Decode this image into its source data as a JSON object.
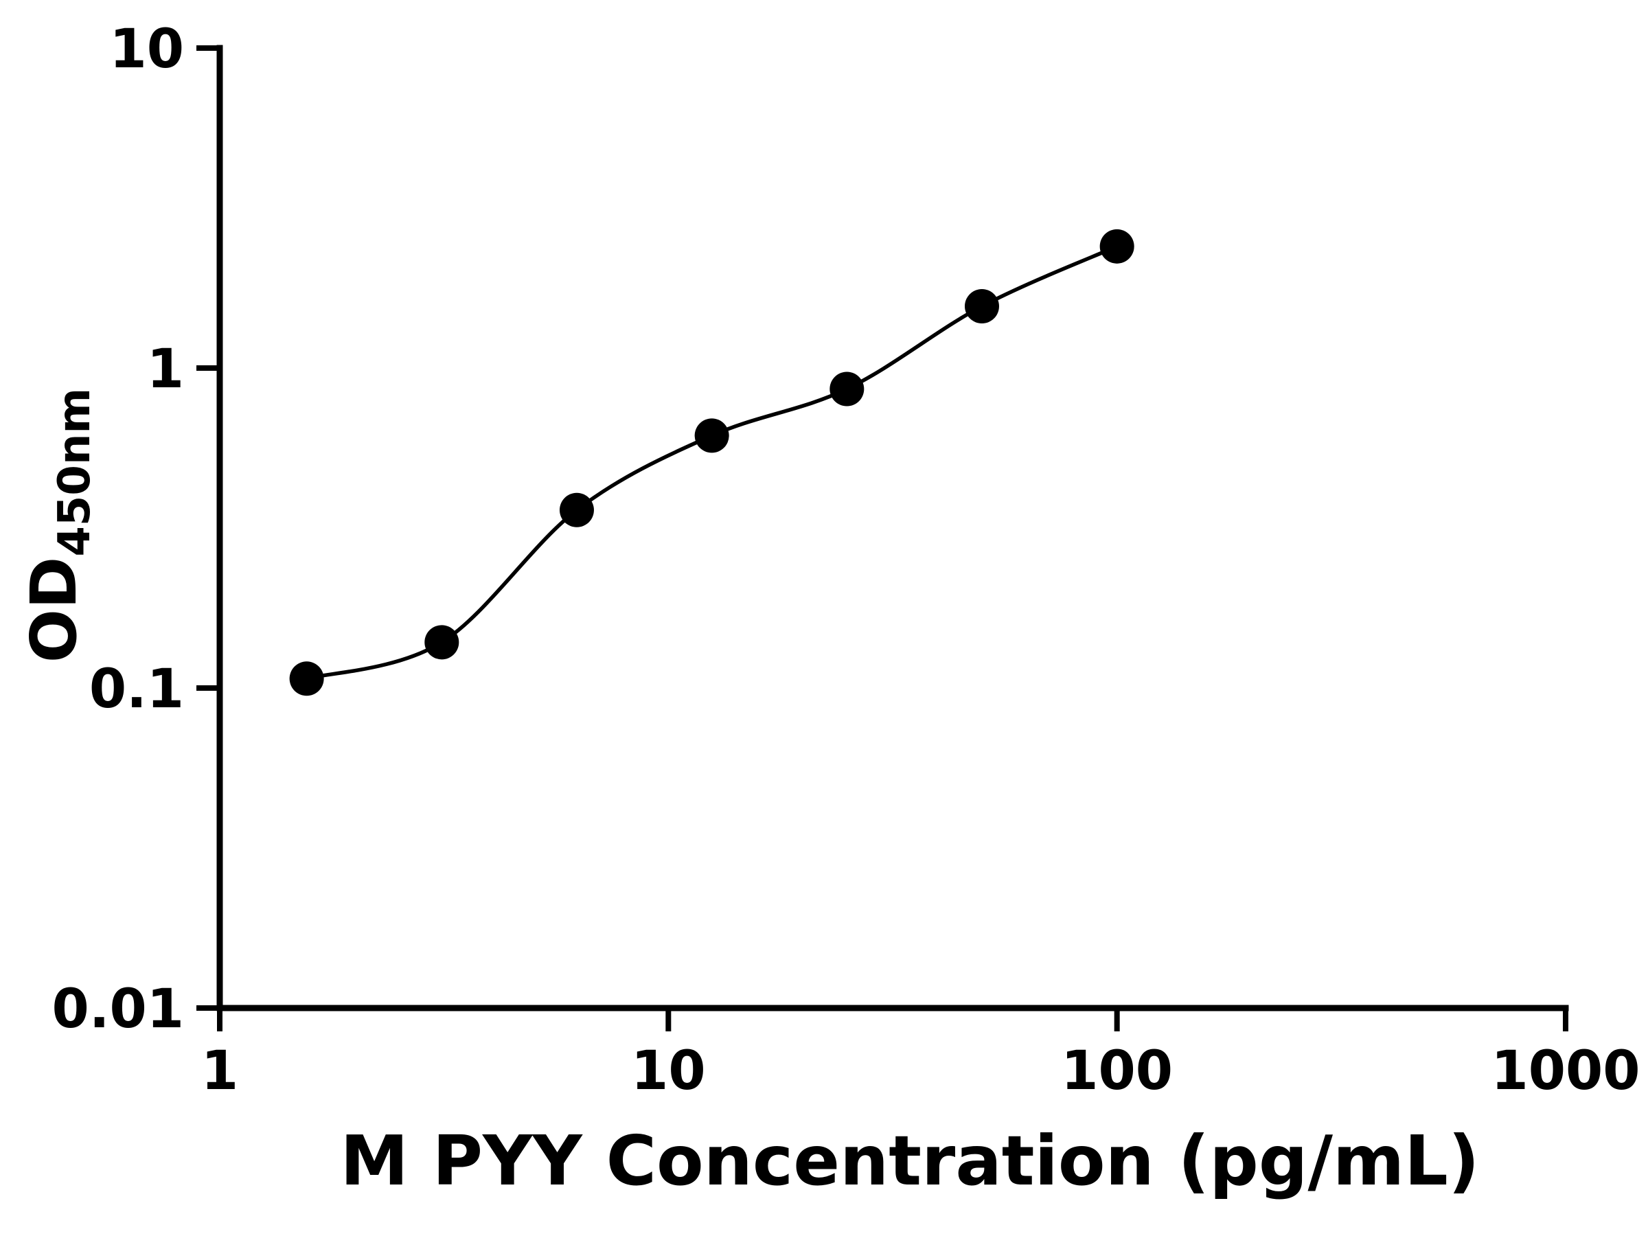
{
  "chart_data": {
    "type": "scatter",
    "title": "",
    "xlabel": "M PYY Concentration (pg/mL)",
    "ylabel_main": "OD",
    "ylabel_sub": "450nm",
    "x_scale": "log",
    "y_scale": "log",
    "xlim": [
      1,
      1000
    ],
    "ylim": [
      0.01,
      10
    ],
    "grid": false,
    "legend": false,
    "background": "#ffffff",
    "axis_color": "#000000",
    "marker_color": "#000000",
    "line_color": "#000000",
    "marker_style": "filled-circle",
    "curve_style": "smooth-fit-through-points",
    "x": [
      1.5625,
      3.125,
      6.25,
      12.5,
      25,
      50,
      100
    ],
    "y": [
      0.107,
      0.139,
      0.36,
      0.615,
      0.86,
      1.56,
      2.4
    ],
    "x_ticks": [
      {
        "v": 1,
        "label": "1"
      },
      {
        "v": 10,
        "label": "10"
      },
      {
        "v": 100,
        "label": "100"
      },
      {
        "v": 1000,
        "label": "1000"
      }
    ],
    "y_ticks": [
      {
        "v": 0.01,
        "label": "0.01"
      },
      {
        "v": 0.1,
        "label": "0.1"
      },
      {
        "v": 1,
        "label": "1"
      },
      {
        "v": 10,
        "label": "10"
      }
    ]
  }
}
